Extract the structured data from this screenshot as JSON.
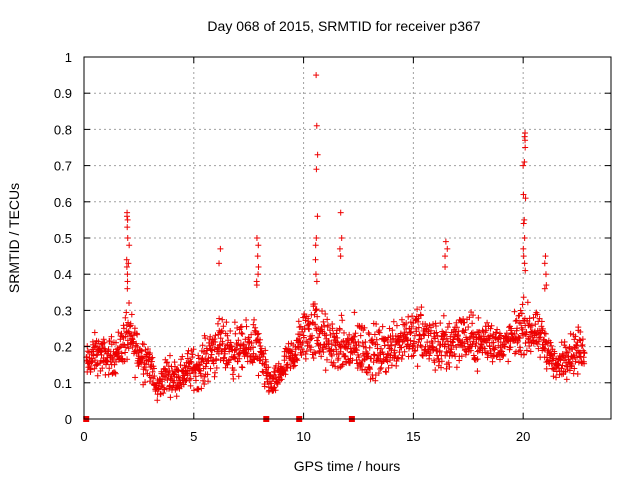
{
  "chart_data": {
    "type": "scatter",
    "title": "Day 068 of 2015, SRMTID for receiver p367",
    "xlabel": "GPS time / hours",
    "ylabel": "SRMTID / TECUs",
    "xlim": [
      0,
      24
    ],
    "ylim": [
      0,
      1
    ],
    "x_ticks": [
      0,
      5,
      10,
      15,
      20
    ],
    "x_tick_labels": [
      "0",
      "5",
      "10",
      "15",
      "20"
    ],
    "y_ticks": [
      0,
      0.1,
      0.2,
      0.3,
      0.4,
      0.5,
      0.6,
      0.7,
      0.8,
      0.9,
      1
    ],
    "y_tick_labels": [
      "0",
      "0.1",
      "0.2",
      "0.3",
      "0.4",
      "0.5",
      "0.6",
      "0.7",
      "0.8",
      "0.9",
      "1"
    ],
    "grid": true,
    "marker": "+",
    "color": "#ee0000",
    "zero_markers_x": [
      0.1,
      8.3,
      9.8,
      12.2
    ],
    "envelope": {
      "x": [
        0.1,
        0.5,
        1.0,
        1.5,
        2.0,
        2.5,
        3.0,
        3.3,
        3.7,
        4.2,
        4.8,
        5.3,
        5.8,
        6.3,
        6.8,
        7.3,
        7.8,
        8.2,
        8.6,
        9.0,
        9.5,
        10.0,
        10.5,
        11.0,
        11.5,
        12.0,
        12.5,
        13.0,
        13.5,
        14.0,
        14.5,
        15.0,
        15.5,
        16.0,
        16.5,
        17.0,
        17.5,
        18.0,
        18.5,
        19.0,
        19.5,
        20.0,
        20.5,
        21.0,
        21.5,
        22.0,
        22.5,
        22.8
      ],
      "low": [
        0.08,
        0.1,
        0.1,
        0.1,
        0.12,
        0.08,
        0.08,
        0.03,
        0.05,
        0.05,
        0.06,
        0.06,
        0.08,
        0.1,
        0.08,
        0.1,
        0.1,
        0.05,
        0.04,
        0.07,
        0.1,
        0.12,
        0.12,
        0.1,
        0.1,
        0.08,
        0.08,
        0.07,
        0.08,
        0.1,
        0.12,
        0.12,
        0.1,
        0.1,
        0.08,
        0.12,
        0.12,
        0.12,
        0.12,
        0.14,
        0.14,
        0.15,
        0.15,
        0.12,
        0.08,
        0.1,
        0.1,
        0.12
      ],
      "high": [
        0.22,
        0.26,
        0.24,
        0.26,
        0.35,
        0.28,
        0.24,
        0.12,
        0.2,
        0.18,
        0.22,
        0.22,
        0.3,
        0.3,
        0.3,
        0.28,
        0.32,
        0.22,
        0.14,
        0.2,
        0.25,
        0.34,
        0.38,
        0.32,
        0.3,
        0.3,
        0.32,
        0.3,
        0.28,
        0.3,
        0.34,
        0.35,
        0.34,
        0.3,
        0.32,
        0.34,
        0.32,
        0.3,
        0.32,
        0.26,
        0.3,
        0.36,
        0.32,
        0.3,
        0.2,
        0.26,
        0.28,
        0.25
      ]
    },
    "spikes": [
      {
        "x": 2.0,
        "values": [
          0.57,
          0.56,
          0.55,
          0.53,
          0.5,
          0.48,
          0.44,
          0.43,
          0.42,
          0.4,
          0.38,
          0.36
        ]
      },
      {
        "x": 6.2,
        "values": [
          0.47,
          0.43
        ]
      },
      {
        "x": 7.9,
        "values": [
          0.5,
          0.48,
          0.45,
          0.42,
          0.4,
          0.38,
          0.37
        ]
      },
      {
        "x": 10.6,
        "values": [
          0.95,
          0.81,
          0.73,
          0.69,
          0.56,
          0.5,
          0.48,
          0.44,
          0.4,
          0.38
        ]
      },
      {
        "x": 11.7,
        "values": [
          0.57,
          0.5,
          0.47,
          0.45
        ]
      },
      {
        "x": 16.5,
        "values": [
          0.49,
          0.47,
          0.45,
          0.42
        ]
      },
      {
        "x": 20.05,
        "values": [
          0.79,
          0.78,
          0.77,
          0.75,
          0.71,
          0.7,
          0.62,
          0.61,
          0.55,
          0.54,
          0.5,
          0.47,
          0.45,
          0.43,
          0.41
        ]
      },
      {
        "x": 21.0,
        "values": [
          0.45,
          0.43,
          0.4,
          0.37,
          0.36
        ]
      }
    ]
  }
}
